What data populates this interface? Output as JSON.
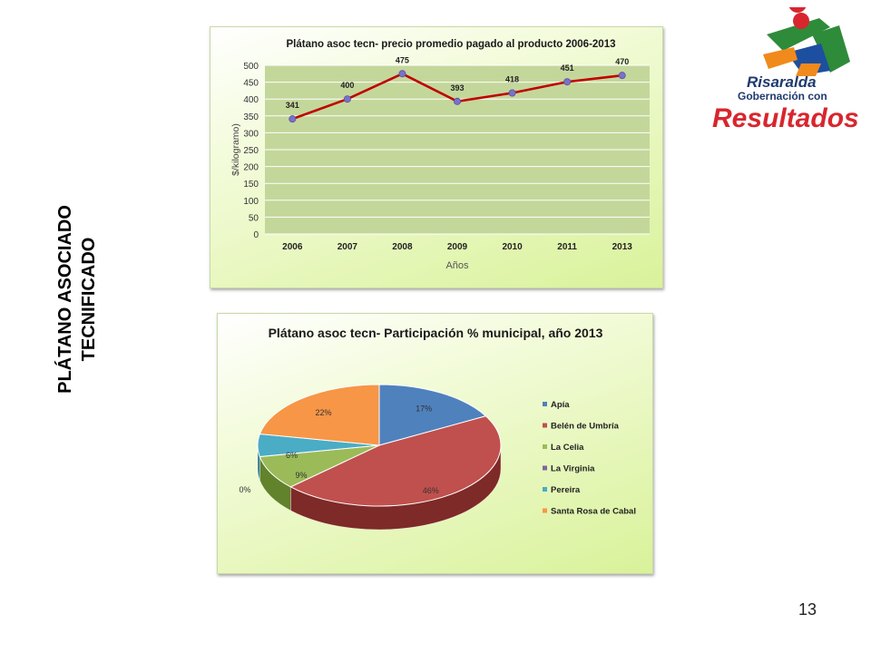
{
  "side_title": {
    "line1": "PLÁTANO ASOCIADO",
    "line2": "TECNIFICADO"
  },
  "page_number": "13",
  "logo": {
    "icon": "risaralda-logo-icon",
    "line1": "Risaralda",
    "line2": "Gobernación con",
    "line3": "Resultados",
    "colors": {
      "green": "#2e8b3a",
      "blue": "#1d4fa0",
      "orange": "#f08a1c",
      "red": "#d8262e"
    }
  },
  "chart_data": [
    {
      "type": "line",
      "title": "Plátano asoc tecn- precio promedio pagado al producto 2006-2013",
      "xlabel": "Años",
      "ylabel": "$/kilogramo)",
      "categories": [
        "2006",
        "2007",
        "2008",
        "2009",
        "2010",
        "2011",
        "2013"
      ],
      "series": [
        {
          "values": [
            341,
            400,
            475,
            393,
            418,
            451,
            470
          ],
          "color": "#c00000",
          "marker_color": "#7a72c4"
        }
      ],
      "ylim": [
        0,
        500
      ],
      "yticks": [
        0,
        50,
        100,
        150,
        200,
        250,
        300,
        350,
        400,
        450,
        500
      ],
      "grid": true,
      "plot_bg": "#c4d79b"
    },
    {
      "type": "pie",
      "title": "Plátano asoc tecn- Participación % municipal, año 2013",
      "slices": [
        {
          "label": "Apía",
          "value": 17,
          "display": "17%",
          "color": "#4f81bd",
          "dark": "#2f5b8f"
        },
        {
          "label": "Belén de Umbría",
          "value": 46,
          "display": "46%",
          "color": "#c0504d",
          "dark": "#7e2a28"
        },
        {
          "label": "La Celia",
          "value": 9,
          "display": "9%",
          "color": "#9bbb59",
          "dark": "#62822c"
        },
        {
          "label": "La Virginia",
          "value": 0,
          "display": "0%",
          "color": "#8064a2",
          "dark": "#54407a"
        },
        {
          "label": "Pereira",
          "value": 6,
          "display": "6%",
          "color": "#4bacc6",
          "dark": "#2d7a90"
        },
        {
          "label": "Santa Rosa de Cabal",
          "value": 22,
          "display": "22%",
          "color": "#f79646",
          "dark": "#b9661f"
        }
      ],
      "legend": "right"
    }
  ]
}
